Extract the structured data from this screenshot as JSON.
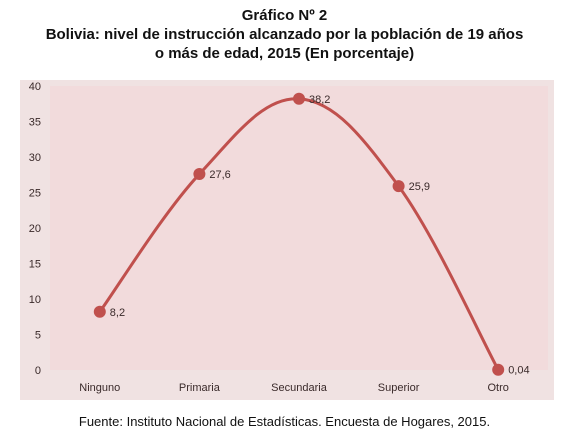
{
  "header": {
    "figure_number": "Gráfico Nº 2",
    "title_line1": "Bolivia: nivel de instrucción alcanzado por la población de 19 años",
    "title_line2": "o más de edad, 2015 (En porcentaje)"
  },
  "footer": {
    "source": "Fuente: Instituto Nacional de Estadísticas. Encuesta de Hogares, 2015."
  },
  "chart_data": {
    "type": "line",
    "title": "Bolivia: nivel de instrucción alcanzado por la población de 19 años o más de edad, 2015 (En porcentaje)",
    "categories": [
      "Ninguno",
      "Primaria",
      "Secundaria",
      "Superior",
      "Otro"
    ],
    "series": [
      {
        "values": [
          8.2,
          27.6,
          38.2,
          25.9,
          0.04
        ],
        "data_labels": [
          "8,2",
          "27,6",
          "38,2",
          "25,9",
          "0,04"
        ]
      }
    ],
    "xlabel": "",
    "ylabel": "",
    "ylim": [
      0,
      40
    ],
    "yticks": [
      0,
      5,
      10,
      15,
      20,
      25,
      30,
      35,
      40
    ],
    "grid": false,
    "legend": "none",
    "colors": {
      "frame_background": "#f0e2e2",
      "plot_background": "#f2dbdc",
      "line": "#c0504d",
      "marker": "#c0504d",
      "axis_text": "#3a2a2a"
    }
  }
}
